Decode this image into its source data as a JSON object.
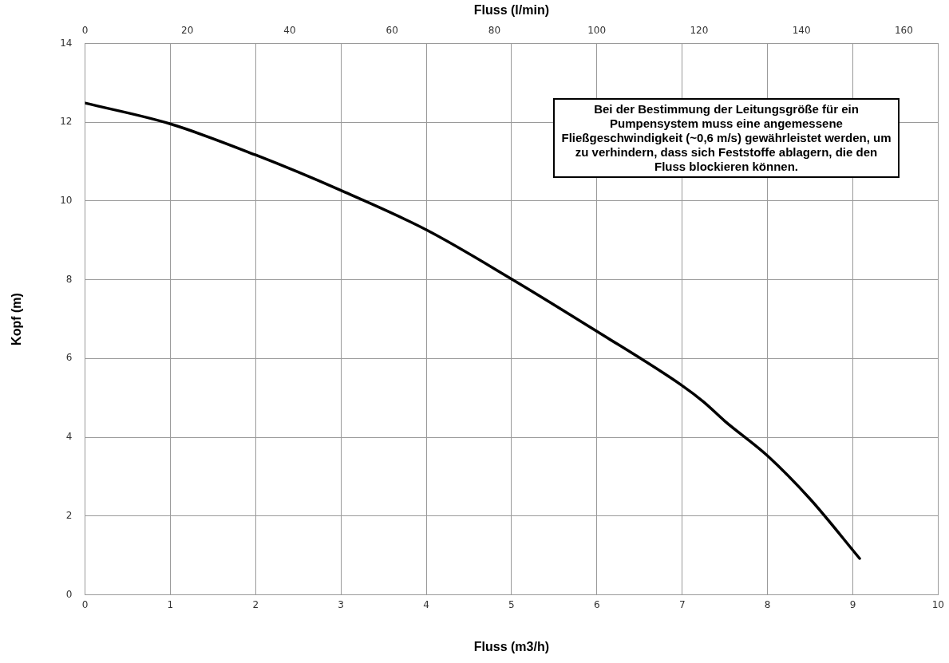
{
  "chart_data": {
    "type": "line",
    "xlabel": "Fluss (m3/h)",
    "x2label": "Fluss (l/min)",
    "ylabel": "Kopf (m)",
    "x": [
      0,
      1,
      2,
      3,
      4,
      5,
      6,
      7,
      7.25,
      7.5,
      8,
      8.5,
      9.08
    ],
    "series": [
      {
        "color": "#000000",
        "values": [
          12.49,
          11.96,
          11.17,
          10.27,
          9.27,
          8.02,
          6.69,
          5.31,
          4.9,
          4.41,
          3.53,
          2.43,
          0.92
        ]
      }
    ],
    "xlim": [
      0,
      10
    ],
    "xticks": [
      0,
      1,
      2,
      3,
      4,
      5,
      6,
      7,
      8,
      9,
      10
    ],
    "x2lim": [
      0,
      166.7
    ],
    "x2ticks": [
      0,
      20,
      40,
      60,
      80,
      100,
      120,
      140,
      160
    ],
    "ylim": [
      0,
      14
    ],
    "yticks": [
      0,
      2,
      4,
      6,
      8,
      10,
      12,
      14
    ],
    "grid": true,
    "legend": false,
    "marker": "none",
    "line_style": "solid",
    "annotations": [
      "Bei der Bestimmung der Leitungsgröße für ein Pumpensystem muss eine angemessene Fließgeschwindigkeit (~0,6 m/s) gewährleistet werden, um zu verhindern, dass sich Feststoffe ablagern, die den Fluss blockieren können."
    ]
  }
}
